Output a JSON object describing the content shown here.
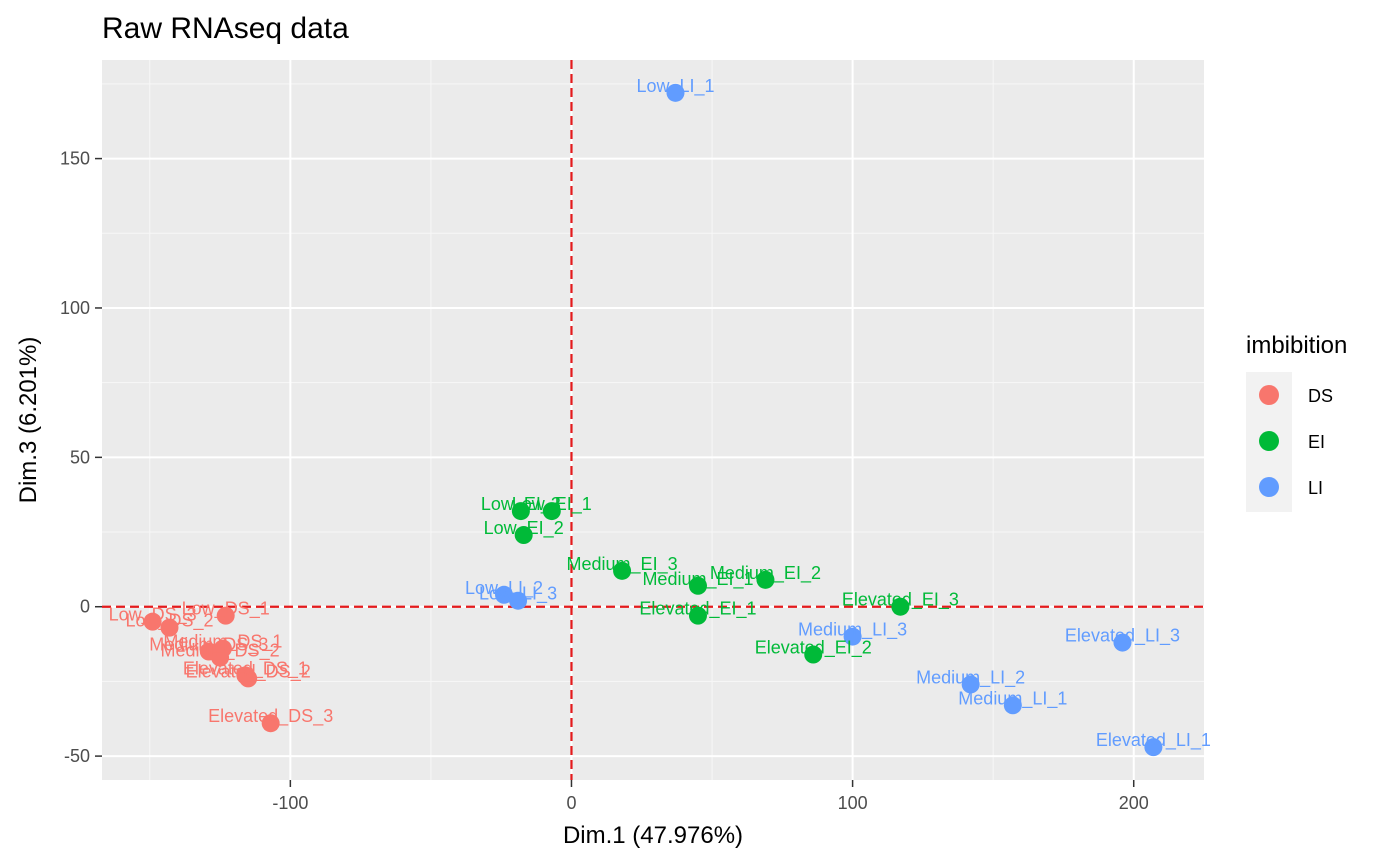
{
  "chart_data": {
    "type": "scatter",
    "title": "Raw RNAseq data",
    "xlabel": "Dim.1 (47.976%)",
    "ylabel": "Dim.3 (6.201%)",
    "xlim": [
      -167,
      225
    ],
    "ylim": [
      -58,
      183
    ],
    "x_ticks": [
      -100,
      0,
      100,
      200
    ],
    "x_tick_labels": [
      "-100",
      "0",
      "100",
      "200"
    ],
    "y_ticks": [
      -50,
      0,
      50,
      100,
      150
    ],
    "y_tick_labels": [
      "-50",
      "0",
      "50",
      "100",
      "150"
    ],
    "grid": true,
    "reference_lines": {
      "x": 0,
      "y": 0,
      "color": "#e41a1c",
      "style": "dashed"
    },
    "legend": {
      "title": "imbibition",
      "placement": "right",
      "entries": [
        {
          "label": "DS",
          "color": "#f8766d"
        },
        {
          "label": "EI",
          "color": "#00ba38"
        },
        {
          "label": "LI",
          "color": "#619cff"
        }
      ]
    },
    "series": [
      {
        "name": "DS",
        "color": "#f8766d",
        "points": [
          {
            "label": "Low_DS_1",
            "x": -123,
            "y": -3
          },
          {
            "label": "Low_DS_2",
            "x": -143,
            "y": -7
          },
          {
            "label": "Low_DS_3",
            "x": -149,
            "y": -5
          },
          {
            "label": "Medium_DS_1",
            "x": -124,
            "y": -14
          },
          {
            "label": "Medium_DS_2",
            "x": -125,
            "y": -17
          },
          {
            "label": "Medium_DS_3",
            "x": -129,
            "y": -15
          },
          {
            "label": "Elevated_DS_1",
            "x": -116,
            "y": -23
          },
          {
            "label": "Elevated_DS_2",
            "x": -115,
            "y": -24
          },
          {
            "label": "Elevated_DS_3",
            "x": -107,
            "y": -39
          }
        ]
      },
      {
        "name": "EI",
        "color": "#00ba38",
        "points": [
          {
            "label": "Low_EI_1",
            "x": -7,
            "y": 32
          },
          {
            "label": "Low_EI_3",
            "x": -18,
            "y": 32
          },
          {
            "label": "Low_EI_2",
            "x": -17,
            "y": 24
          },
          {
            "label": "Medium_EI_3",
            "x": 18,
            "y": 12
          },
          {
            "label": "Medium_EI_1",
            "x": 45,
            "y": 7
          },
          {
            "label": "Medium_EI_2",
            "x": 69,
            "y": 9
          },
          {
            "label": "Elevated_EI_1",
            "x": 45,
            "y": -3
          },
          {
            "label": "Elevated_EI_2",
            "x": 86,
            "y": -16
          },
          {
            "label": "Elevated_EI_3",
            "x": 117,
            "y": 0
          }
        ]
      },
      {
        "name": "LI",
        "color": "#619cff",
        "points": [
          {
            "label": "Low_LI_1",
            "x": 37,
            "y": 172
          },
          {
            "label": "Low_LI_2",
            "x": -24,
            "y": 4
          },
          {
            "label": "Low_LI_3",
            "x": -19,
            "y": 2
          },
          {
            "label": "Medium_LI_1",
            "x": 157,
            "y": -33
          },
          {
            "label": "Medium_LI_2",
            "x": 142,
            "y": -26
          },
          {
            "label": "Medium_LI_3",
            "x": 100,
            "y": -10
          },
          {
            "label": "Elevated_LI_1",
            "x": 207,
            "y": -47
          },
          {
            "label": "Elevated_LI_3",
            "x": 196,
            "y": -12
          }
        ]
      }
    ]
  }
}
